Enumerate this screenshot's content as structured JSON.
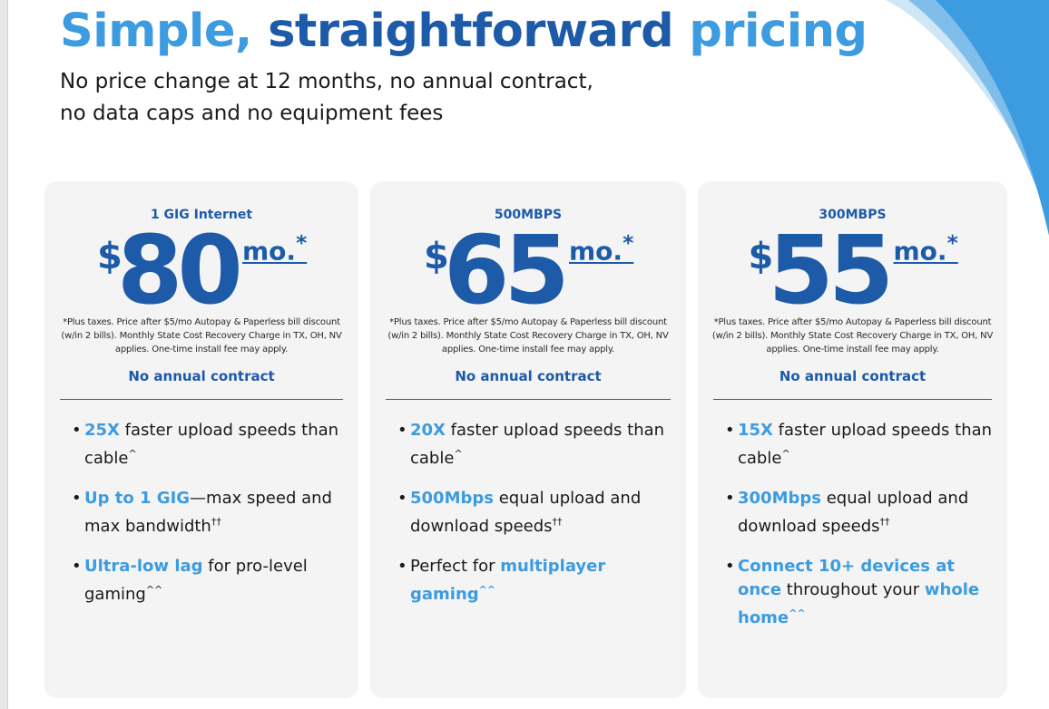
{
  "header": {
    "title_part1": "Simple,",
    "title_part2": "straightforward",
    "title_part3": "pricing",
    "subtitle_line1": "No price change at 12 months, no annual contract,",
    "subtitle_line2": "no data caps and no equipment fees"
  },
  "colors": {
    "brand_light": "#3d9be0",
    "brand_dark": "#1d5aa8",
    "card_bg": "#f4f4f4"
  },
  "plans": [
    {
      "name": "1 GIG Internet",
      "currency": "$",
      "price": "80",
      "per": "mo.",
      "per_mark": "*",
      "fine_print": "*Plus taxes. Price after $5/mo Autopay & Paperless bill discount (w/in 2 bills). Monthly State Cost Recovery Charge in TX, OH, NV applies. One-time install fee may apply.",
      "contract": "No annual contract",
      "features": [
        {
          "hl": "25X",
          "text": " faster upload speeds than cable",
          "mark": "^"
        },
        {
          "hl": "Up to 1 GIG",
          "text": "—max speed and max bandwidth",
          "mark": "††"
        },
        {
          "hl": "Ultra-low lag",
          "text": " for pro-level gaming",
          "mark": "^^"
        }
      ]
    },
    {
      "name": "500MBPS",
      "currency": "$",
      "price": "65",
      "per": "mo.",
      "per_mark": "*",
      "fine_print": "*Plus taxes. Price after $5/mo Autopay & Paperless bill discount (w/in 2 bills). Monthly State Cost Recovery Charge in TX, OH, NV applies. One-time install fee may apply.",
      "contract": "No annual contract",
      "features": [
        {
          "hl": "20X",
          "text": " faster upload speeds than cable",
          "mark": "^"
        },
        {
          "hl": "500Mbps",
          "text": " equal upload and download speeds",
          "mark": "††"
        },
        {
          "pre": "Perfect for ",
          "hl": "multiplayer gaming",
          "mark": "^^"
        }
      ]
    },
    {
      "name": "300MBPS",
      "currency": "$",
      "price": "55",
      "per": "mo.",
      "per_mark": "*",
      "fine_print": "*Plus taxes. Price after $5/mo Autopay & Paperless bill discount (w/in 2 bills). Monthly State Cost Recovery Charge in TX, OH, NV applies. One-time install fee may apply.",
      "contract": "No annual contract",
      "features": [
        {
          "hl": "15X",
          "text": " faster upload speeds than cable",
          "mark": "^"
        },
        {
          "hl": "300Mbps",
          "text": " equal upload and download speeds",
          "mark": "††"
        },
        {
          "hl": "Connect 10+ devices at once",
          "text": " throughout your ",
          "hl2": "whole home",
          "mark": "^^"
        }
      ]
    }
  ]
}
